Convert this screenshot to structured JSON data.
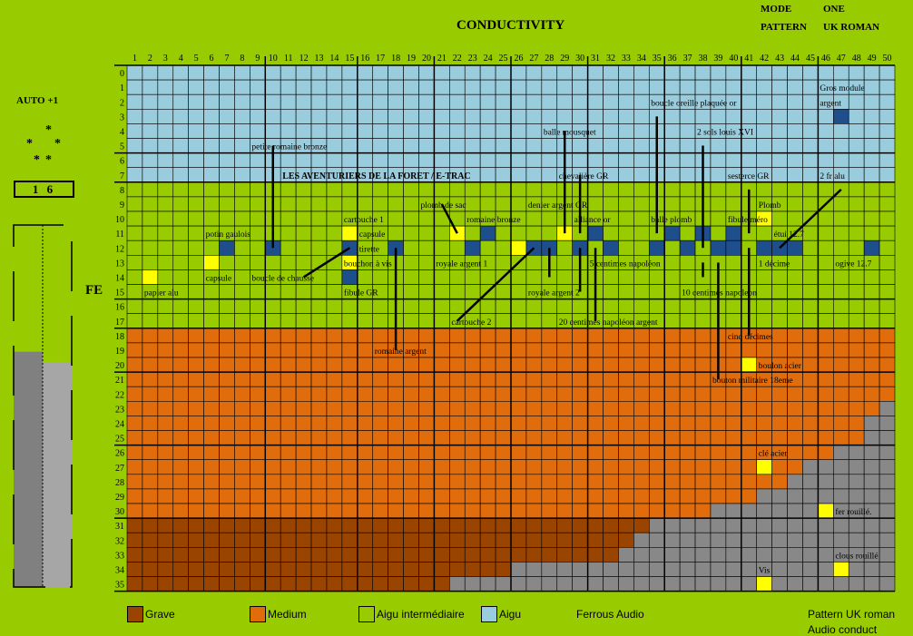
{
  "header": {
    "title": "CONDUCTIVITY",
    "mode_label": "MODE",
    "mode_value": "ONE",
    "pattern_label": "PATTERN",
    "pattern_value": "UK ROMAN"
  },
  "left_panel": {
    "auto_label": "AUTO +1",
    "stars": [
      "*",
      "*",
      "*",
      "*",
      "*"
    ],
    "gain_value": "1 6",
    "fe_label": "FE",
    "bars": {
      "left_level": 0.65,
      "right_level": 0.62
    }
  },
  "colors": {
    "background": "#99cc00",
    "aigu": "#99ccdd",
    "aigu_intermediaire": "#99cc00",
    "medium": "#e06c0b",
    "grave": "#994400",
    "ferrous": "#888888",
    "target_yellow": "#ffff00",
    "target_blue": "#1f4e8c"
  },
  "chart_data": {
    "type": "heatmap",
    "title": "CONDUCTIVITY",
    "xlabel": "",
    "ylabel": "FE",
    "x_ticks": [
      1,
      2,
      3,
      4,
      5,
      6,
      7,
      8,
      9,
      10,
      11,
      12,
      13,
      14,
      15,
      16,
      17,
      18,
      19,
      20,
      21,
      22,
      23,
      24,
      25,
      26,
      27,
      28,
      29,
      30,
      31,
      32,
      33,
      34,
      35,
      36,
      37,
      38,
      39,
      40,
      41,
      42,
      43,
      44,
      45,
      46,
      47,
      48,
      49,
      50
    ],
    "y_ticks": [
      0,
      1,
      2,
      3,
      4,
      5,
      6,
      7,
      8,
      9,
      10,
      11,
      12,
      13,
      14,
      15,
      16,
      17,
      18,
      19,
      20,
      21,
      22,
      23,
      24,
      25,
      26,
      27,
      28,
      29,
      30,
      31,
      32,
      33,
      34,
      35
    ],
    "zones": [
      {
        "name": "Aigu",
        "rows": [
          0,
          7
        ]
      },
      {
        "name": "Aigu intermédiaire",
        "rows": [
          8,
          17
        ]
      },
      {
        "name": "Medium",
        "rows": [
          18,
          30
        ]
      },
      {
        "name": "Grave",
        "rows": [
          31,
          35
        ]
      }
    ],
    "ferrous_start_column_by_row": {
      "23": 50,
      "24": 49,
      "25": 49,
      "26": 47,
      "27": 45,
      "28": 44,
      "29": 42,
      "30": 39,
      "31": 35,
      "32": 34,
      "33": 33,
      "34": 26,
      "35": 22
    },
    "yellow_cells": [
      [
        2,
        14
      ],
      [
        6,
        13
      ],
      [
        15,
        11
      ],
      [
        15,
        13
      ],
      [
        22,
        11
      ],
      [
        26,
        12
      ],
      [
        29,
        11
      ],
      [
        42,
        10
      ],
      [
        41,
        20
      ],
      [
        42,
        27
      ],
      [
        46,
        30
      ],
      [
        47,
        34
      ],
      [
        42,
        35
      ]
    ],
    "blue_cells": [
      [
        7,
        12
      ],
      [
        10,
        12
      ],
      [
        15,
        12
      ],
      [
        15,
        14
      ],
      [
        18,
        12
      ],
      [
        23,
        12
      ],
      [
        24,
        11
      ],
      [
        27,
        12
      ],
      [
        28,
        12
      ],
      [
        30,
        12
      ],
      [
        31,
        11
      ],
      [
        32,
        12
      ],
      [
        35,
        12
      ],
      [
        36,
        11
      ],
      [
        37,
        12
      ],
      [
        38,
        11
      ],
      [
        39,
        12
      ],
      [
        40,
        11
      ],
      [
        40,
        12
      ],
      [
        42,
        12
      ],
      [
        43,
        12
      ],
      [
        44,
        12
      ],
      [
        49,
        12
      ],
      [
        47,
        3
      ]
    ],
    "annotations": [
      {
        "text": "papier alu",
        "x": 2,
        "y": 15
      },
      {
        "text": "capsule",
        "x": 6,
        "y": 14
      },
      {
        "text": "potin gaulois",
        "x": 6,
        "y": 11
      },
      {
        "text": "petite romaine bronze",
        "x": 9,
        "y": 5
      },
      {
        "text": "boucle de chausse",
        "x": 9,
        "y": 14
      },
      {
        "text": "LES AVENTURIERS DE LA FORET / E-TRAC",
        "x": 11,
        "y": 7
      },
      {
        "text": "cartouche 1",
        "x": 15,
        "y": 10
      },
      {
        "text": "capsule",
        "x": 16,
        "y": 11
      },
      {
        "text": "tirette",
        "x": 16,
        "y": 12
      },
      {
        "text": "bouchon à vis",
        "x": 15,
        "y": 13
      },
      {
        "text": "fibule GR",
        "x": 15,
        "y": 15
      },
      {
        "text": "romaine argent",
        "x": 17,
        "y": 19
      },
      {
        "text": "plomb de sac",
        "x": 20,
        "y": 9
      },
      {
        "text": "royale argent 1",
        "x": 21,
        "y": 13
      },
      {
        "text": "romaine bronze",
        "x": 23,
        "y": 10
      },
      {
        "text": "cartouche 2",
        "x": 22,
        "y": 17
      },
      {
        "text": "denier argent GR",
        "x": 27,
        "y": 9
      },
      {
        "text": "balle mousquet",
        "x": 28,
        "y": 4
      },
      {
        "text": "chevalière GR",
        "x": 29,
        "y": 7
      },
      {
        "text": "alliance or",
        "x": 30,
        "y": 10
      },
      {
        "text": "royale argent 2",
        "x": 27,
        "y": 15
      },
      {
        "text": "20 centimes napoléon argent",
        "x": 29,
        "y": 17
      },
      {
        "text": "5 centimes napoléon",
        "x": 31,
        "y": 13
      },
      {
        "text": "boucle oreille plaquée or",
        "x": 35,
        "y": 2
      },
      {
        "text": "balle plomb",
        "x": 35,
        "y": 10
      },
      {
        "text": "2 sols louis XVI",
        "x": 38,
        "y": 4
      },
      {
        "text": "10 centimes napoleon",
        "x": 37,
        "y": 15
      },
      {
        "text": "sesterce GR",
        "x": 40,
        "y": 7
      },
      {
        "text": "Plomb",
        "x": 42,
        "y": 9
      },
      {
        "text": "fibule méro",
        "x": 40,
        "y": 10
      },
      {
        "text": "étui 12.7",
        "x": 43,
        "y": 11
      },
      {
        "text": "1 décime",
        "x": 42,
        "y": 13
      },
      {
        "text": "cinq décimes",
        "x": 40,
        "y": 18
      },
      {
        "text": "boulon acier",
        "x": 42,
        "y": 20
      },
      {
        "text": "bouton militaire 18eme",
        "x": 39,
        "y": 21
      },
      {
        "text": "clé acier",
        "x": 42,
        "y": 26
      },
      {
        "text": "Gros module",
        "x": 46,
        "y": 1
      },
      {
        "text": "argent",
        "x": 46,
        "y": 2
      },
      {
        "text": "2 fr alu",
        "x": 46,
        "y": 7
      },
      {
        "text": "ogive 12.7",
        "x": 47,
        "y": 13
      },
      {
        "text": "fer rouillé.",
        "x": 47,
        "y": 30
      },
      {
        "text": "clous rouillé",
        "x": 47,
        "y": 33
      },
      {
        "text": "Vis",
        "x": 42,
        "y": 34
      }
    ],
    "pointer_lines": [
      {
        "from": [
          10,
          5
        ],
        "to": [
          10,
          12
        ]
      },
      {
        "from": [
          12,
          14
        ],
        "to": [
          15,
          12
        ]
      },
      {
        "from": [
          18,
          12
        ],
        "to": [
          18,
          19
        ]
      },
      {
        "from": [
          21,
          9
        ],
        "to": [
          22,
          11
        ]
      },
      {
        "from": [
          22,
          17
        ],
        "to": [
          27,
          12
        ]
      },
      {
        "from": [
          29,
          4
        ],
        "to": [
          29,
          11
        ]
      },
      {
        "from": [
          30,
          7
        ],
        "to": [
          30,
          11
        ]
      },
      {
        "from": [
          30,
          12
        ],
        "to": [
          30,
          15
        ]
      },
      {
        "from": [
          28,
          12
        ],
        "to": [
          28,
          14
        ]
      },
      {
        "from": [
          31,
          12
        ],
        "to": [
          31,
          17
        ]
      },
      {
        "from": [
          35,
          3
        ],
        "to": [
          35,
          11
        ]
      },
      {
        "from": [
          38,
          5
        ],
        "to": [
          38,
          12
        ]
      },
      {
        "from": [
          39,
          13
        ],
        "to": [
          39,
          21
        ]
      },
      {
        "from": [
          41,
          8
        ],
        "to": [
          41,
          11
        ]
      },
      {
        "from": [
          41,
          12
        ],
        "to": [
          41,
          18
        ]
      },
      {
        "from": [
          38,
          13
        ],
        "to": [
          38,
          14
        ]
      },
      {
        "from": [
          47,
          8
        ],
        "to": [
          43,
          12
        ]
      }
    ],
    "legend": [
      {
        "name": "Grave",
        "color": "#994400"
      },
      {
        "name": "Medium",
        "color": "#e06c0b"
      },
      {
        "name": "Aigu intermédiaire",
        "color": "#99cc00"
      },
      {
        "name": "Aigu",
        "color": "#99ccdd"
      },
      {
        "name": "Ferrous Audio",
        "color": ""
      }
    ]
  },
  "footer": {
    "line1": "Pattern UK roman",
    "line2": "Audio conduct"
  }
}
